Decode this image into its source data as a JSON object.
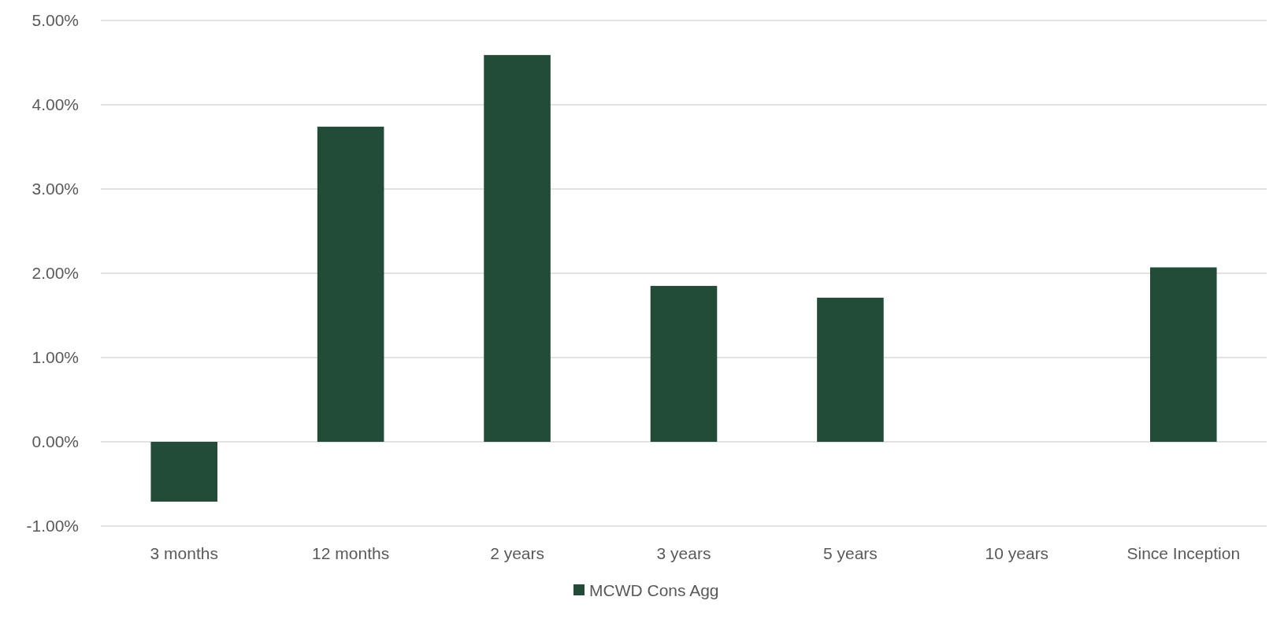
{
  "chart_data": {
    "type": "bar",
    "categories": [
      "3 months",
      "12 months",
      "2 years",
      "3 years",
      "5 years",
      "10 years",
      "Since Inception"
    ],
    "series": [
      {
        "name": "MCWD Cons Agg",
        "color": "#224c38",
        "values": [
          -0.71,
          3.74,
          4.59,
          1.85,
          1.71,
          null,
          2.07
        ]
      }
    ],
    "ylim": [
      -1,
      5
    ],
    "yticks": [
      {
        "value": -1,
        "label": "-1.00%"
      },
      {
        "value": 0,
        "label": "0.00%"
      },
      {
        "value": 1,
        "label": "1.00%"
      },
      {
        "value": 2,
        "label": "2.00%"
      },
      {
        "value": 3,
        "label": "3.00%"
      },
      {
        "value": 4,
        "label": "4.00%"
      },
      {
        "value": 5,
        "label": "5.00%"
      }
    ],
    "grid": "y",
    "legend": "bottom"
  }
}
